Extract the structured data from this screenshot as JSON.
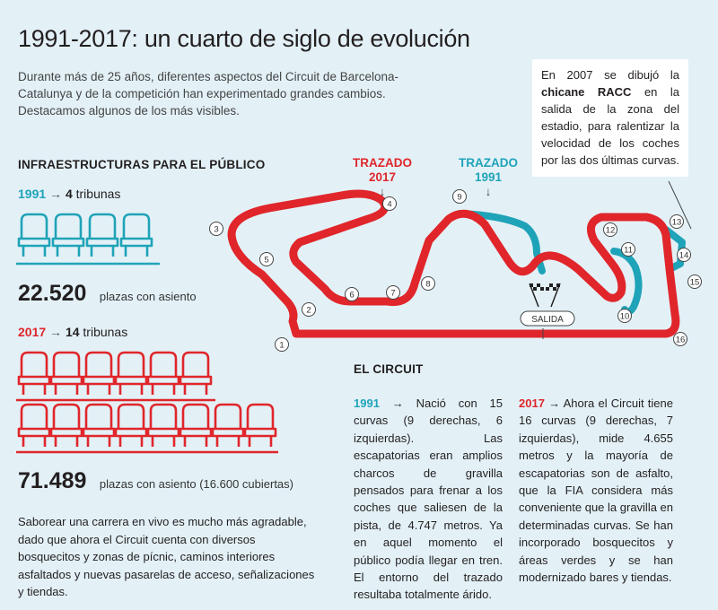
{
  "title": "1991-2017: un cuarto de siglo de evolución",
  "intro": "Durante más de 25 años, diferentes aspectos del Circuit de Barcelona-Catalunya y de la competición han experimentado grandes cambios. Destacamos algunos de los más visibles.",
  "callout": {
    "pre": "En 2007 se dibujó la",
    "bold": "chicane RACC",
    "post": "en la salida de la zona del estadio, para ralentizar la velocidad de los coches por las dos últimas curvas."
  },
  "infra": {
    "heading": "INFRAESTRUCTURAS PARA EL PÚBLICO",
    "y1991": {
      "year": "1991",
      "arrow": "→",
      "count": "4",
      "unit": "tribunas",
      "seats": "22.520",
      "caption": "plazas con asiento"
    },
    "y2017": {
      "year": "2017",
      "arrow": "→",
      "count": "14",
      "unit": "tribunas",
      "seats": "71.489",
      "caption": "plazas con asiento (16.600 cubiertas)"
    },
    "footer": "Saborear una carrera en vivo es mucho más agradable, dado que ahora el Circuit cuenta con diversos bosquecitos y zonas de pícnic, caminos interiores asfaltados y nuevas pasarelas de acceso, señalizaciones y tiendas."
  },
  "track": {
    "label_2017": {
      "line1": "TRAZADO",
      "line2": "2017",
      "arrow": "↓"
    },
    "label_1991": {
      "line1": "TRAZADO",
      "line2": "1991",
      "arrow": "↓"
    },
    "salida": "SALIDA",
    "corners": [
      "1",
      "2",
      "3",
      "4",
      "5",
      "6",
      "7",
      "8",
      "9",
      "10",
      "11",
      "12",
      "13",
      "14",
      "15",
      "16"
    ],
    "colors": {
      "trazado_2017": "#e0262b",
      "trazado_1991": "#1fa3b8"
    }
  },
  "circuit": {
    "heading": "EL CIRCUIT",
    "c1991": {
      "year": "1991",
      "arrow": "→",
      "text": "Nació con 15 curvas (9 derechas, 6 izquierdas). Las escapatorias eran amplios charcos de gravilla pensados para frenar a los coches que saliesen de la pista, de 4.747 metros. Ya en aquel momento el público podía llegar en tren. El entorno del trazado resultaba totalmente árido."
    },
    "c2017": {
      "year": "2017",
      "arrow": "→",
      "text": "Ahora el Circuit tiene 16 curvas (9 derechas, 7 izquierdas), mide 4.655 metros y la mayoría de escapatorias son de asfalto, que la FIA considera más conveniente que la gravilla en determinadas curvas. Se han incorporado bosquecitos y áreas verdes y se han modernizado bares y tiendas."
    }
  }
}
